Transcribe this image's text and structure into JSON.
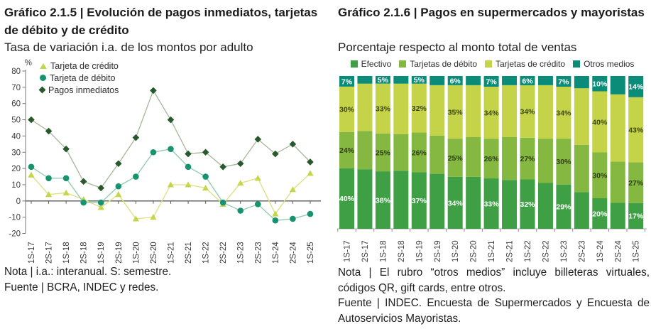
{
  "left_chart": {
    "title": "Gráfico 2.1.5 | Evolución de pagos inmediatos, tarjetas de débito y de crédito",
    "subtitle": "Tasa de variación i.a. de los montos por adulto",
    "note": "Nota | i.a.: interanual. S: semestre.",
    "source": "Fuente | BCRA, INDEC y redes.",
    "chart_data": {
      "type": "line",
      "unit_label": "%",
      "categories": [
        "1S-17",
        "2S-17",
        "1S-18",
        "2S-18",
        "1S-19",
        "2S-19",
        "1S-20",
        "2S-20",
        "1S-21",
        "2S-21",
        "1S-22",
        "2S-22",
        "1S-23",
        "2S-23",
        "1S-24",
        "2S-24",
        "1S-25"
      ],
      "yticks": [
        80,
        70,
        60,
        50,
        40,
        30,
        20,
        10,
        0,
        -10,
        -20
      ],
      "ylim": [
        -20,
        80
      ],
      "grid": false,
      "legend_position": "top-left-inside",
      "series": [
        {
          "name": "Tarjeta de crédito",
          "marker": "triangle",
          "color": "#c6d64b",
          "line_color": "#dce387",
          "values": [
            16,
            4,
            5,
            1,
            -4,
            4,
            -11,
            -10,
            10,
            10,
            8,
            -2,
            11,
            14,
            -8,
            7,
            17
          ]
        },
        {
          "name": "Tarjeta de débito",
          "marker": "circle",
          "color": "#17946f",
          "line_color": "#94ccb0",
          "values": [
            21,
            14,
            14,
            -1,
            -1,
            9,
            15,
            30,
            32,
            21,
            15,
            -1,
            -6,
            -2,
            -12,
            -11,
            -8
          ]
        },
        {
          "name": "Pagos inmediatos",
          "marker": "diamond",
          "color": "#27592d",
          "line_color": "#a9bb9f",
          "values": [
            50,
            43,
            32,
            12,
            8,
            23,
            39,
            68,
            50,
            29,
            30,
            21,
            23,
            38,
            29,
            35,
            24
          ]
        }
      ]
    }
  },
  "right_chart": {
    "title": "Gráfico 2.1.6 | Pagos en supermercados y mayoristas",
    "subtitle": "Porcentaje respecto al monto total de ventas",
    "note": "Nota | El rubro “otros medios” incluye billeteras virtuales, códigos QR, gift cards, entre otros.",
    "source": "Fuente | INDEC. Encuesta de Supermercados y Encuesta de Autoservicios Mayoristas.",
    "chart_data": {
      "type": "stacked-bar-100",
      "label_suffix": "%",
      "categories": [
        "1S-17",
        "2S-17",
        "1S-18",
        "2S-18",
        "1S-19",
        "2S-19",
        "1S-20",
        "2S-20",
        "1S-21",
        "2S-21",
        "1S-22",
        "2S-22",
        "1S-23",
        "2S-23",
        "1S-24",
        "2S-24",
        "1S-25"
      ],
      "label_mask": [
        true,
        false,
        true,
        false,
        true,
        false,
        true,
        false,
        true,
        false,
        true,
        false,
        true,
        false,
        true,
        false,
        true
      ],
      "series": [
        {
          "name": "Efectivo",
          "color": "#3f9f45",
          "label_color": "#ffffff",
          "values": [
            40,
            39,
            38,
            38,
            37,
            36,
            34,
            34,
            33,
            32,
            32,
            30,
            29,
            24,
            20,
            17,
            17
          ]
        },
        {
          "name": "Tarjetas de débito",
          "color": "#84b841",
          "label_color": "#2f3f13",
          "values": [
            24,
            25,
            25,
            24,
            26,
            25,
            25,
            26,
            26,
            28,
            27,
            29,
            30,
            31,
            30,
            27,
            27
          ]
        },
        {
          "name": "Tarjetas de crédito",
          "color": "#c4d348",
          "label_color": "#3d4714",
          "values": [
            30,
            31,
            33,
            33,
            32,
            33,
            35,
            34,
            34,
            34,
            34,
            35,
            34,
            37,
            40,
            44,
            43
          ]
        },
        {
          "name": "Otros medios",
          "color": "#0a8c78",
          "label_color": "#ffffff",
          "values": [
            7,
            5,
            5,
            5,
            5,
            6,
            6,
            6,
            7,
            6,
            6,
            6,
            7,
            8,
            10,
            12,
            14
          ]
        }
      ]
    }
  }
}
